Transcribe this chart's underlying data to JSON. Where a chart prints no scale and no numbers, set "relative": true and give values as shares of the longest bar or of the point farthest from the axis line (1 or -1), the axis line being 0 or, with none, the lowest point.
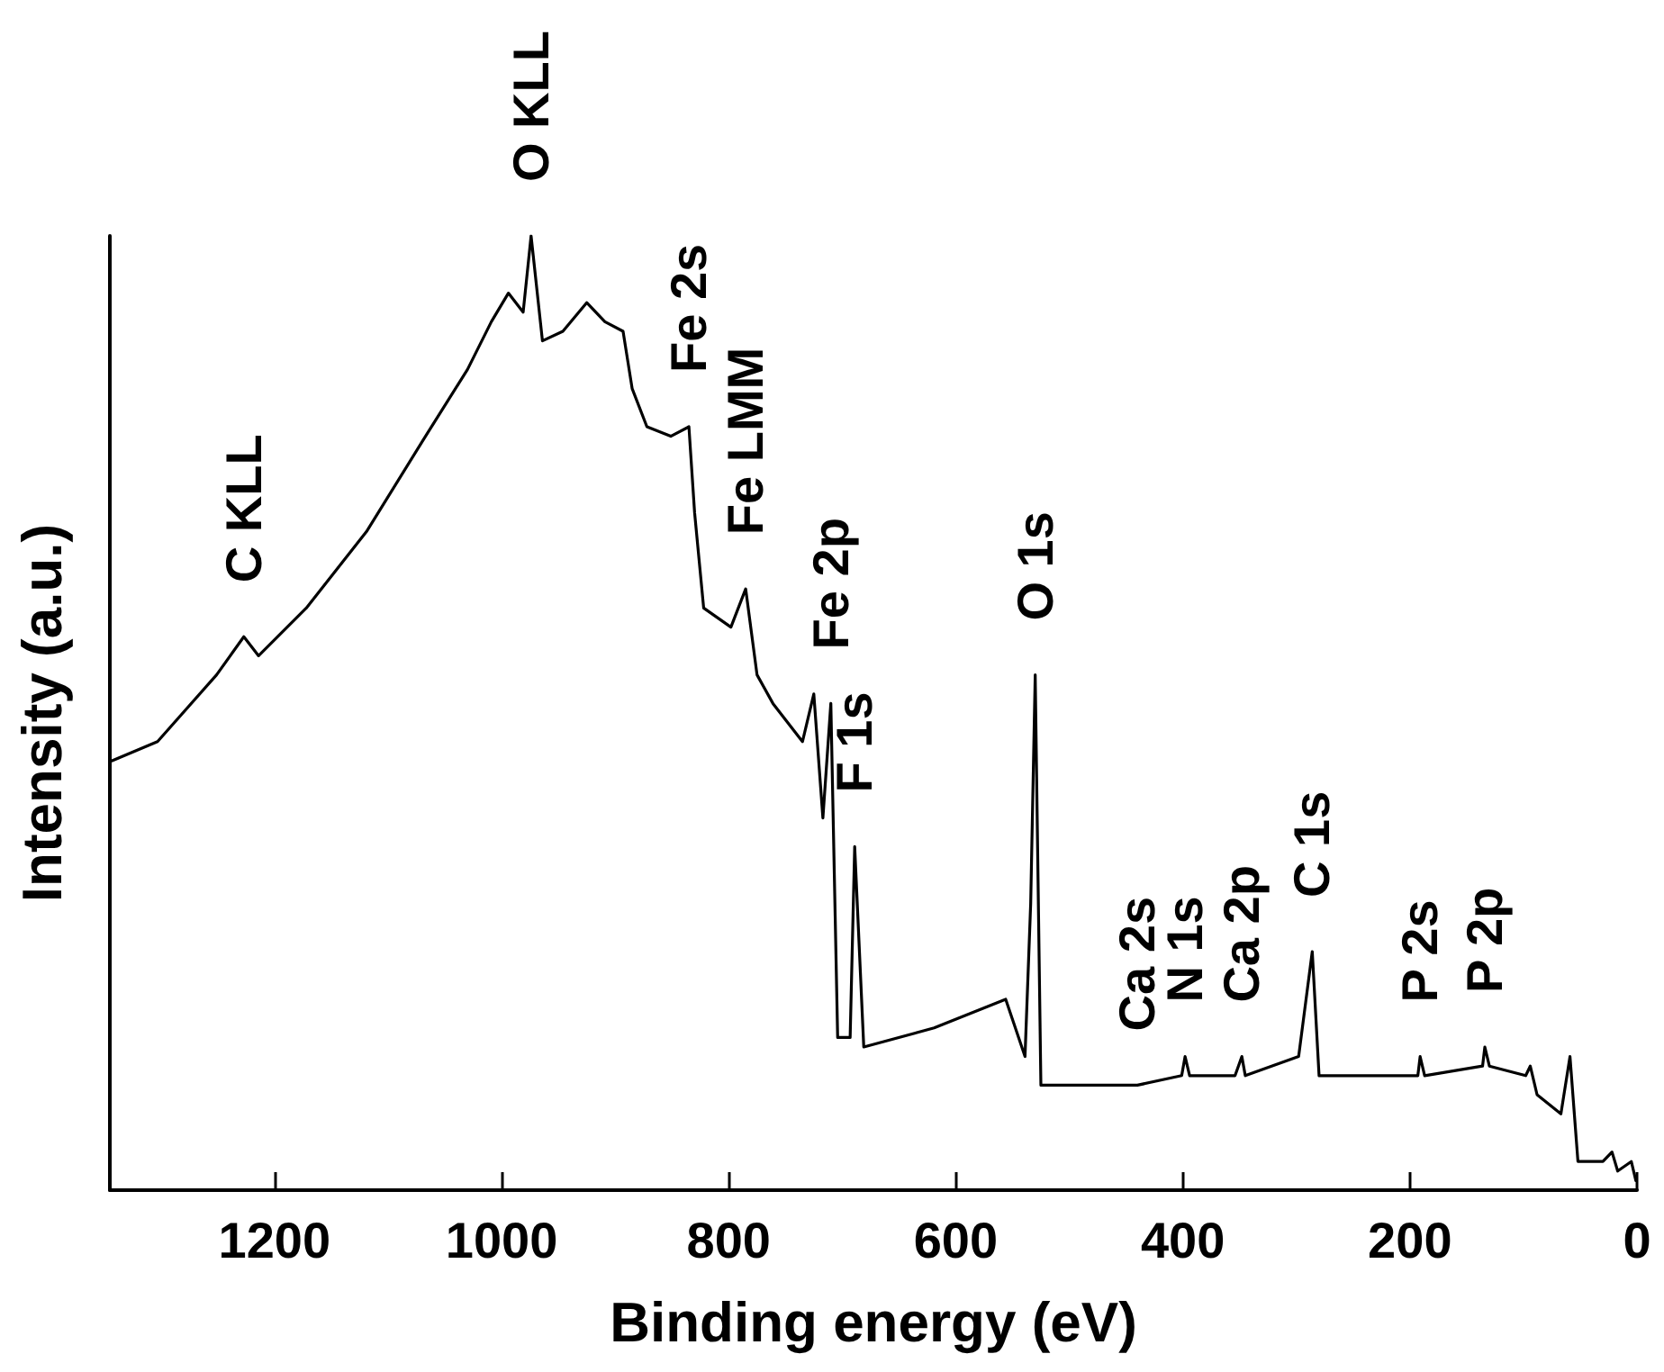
{
  "chart_data": {
    "type": "line",
    "xlabel": "Binding energy (eV)",
    "ylabel": "Intensity (a.u.)",
    "relative": true,
    "xlim": [
      1345,
      0
    ],
    "xticks": [
      1200,
      1000,
      800,
      600,
      400,
      200,
      0
    ],
    "grid": false,
    "marker": "none",
    "line_style": "solid",
    "x": [
      1343,
      1303,
      1251,
      1227,
      1214,
      1172,
      1119,
      1067,
      1030,
      1009,
      994,
      981,
      974,
      964,
      946,
      925,
      909,
      893,
      885,
      872,
      851,
      835,
      830,
      822,
      798,
      785,
      775,
      761,
      735,
      725,
      717,
      710,
      704,
      693,
      689,
      681,
      619,
      556,
      539,
      534,
      530,
      525,
      440,
      401,
      398,
      394,
      354,
      348,
      345,
      298,
      286,
      280,
      193,
      191,
      187,
      136,
      134,
      130,
      98,
      94,
      88,
      67,
      59,
      52,
      30,
      22,
      17,
      5,
      1
    ],
    "series": [
      {
        "color": "#000000",
        "values": [
          0.45,
          0.47,
          0.54,
          0.58,
          0.56,
          0.61,
          0.69,
          0.79,
          0.86,
          0.91,
          0.94,
          0.92,
          1.0,
          0.89,
          0.9,
          0.93,
          0.91,
          0.9,
          0.84,
          0.8,
          0.79,
          0.8,
          0.71,
          0.61,
          0.59,
          0.63,
          0.54,
          0.51,
          0.47,
          0.52,
          0.39,
          0.51,
          0.16,
          0.16,
          0.36,
          0.15,
          0.17,
          0.2,
          0.14,
          0.3,
          0.54,
          0.11,
          0.11,
          0.12,
          0.14,
          0.12,
          0.12,
          0.14,
          0.12,
          0.14,
          0.25,
          0.12,
          0.12,
          0.14,
          0.12,
          0.13,
          0.15,
          0.13,
          0.12,
          0.13,
          0.1,
          0.08,
          0.14,
          0.03,
          0.03,
          0.04,
          0.02,
          0.03,
          0.01
        ]
      }
    ],
    "annotations": [
      {
        "text": "C KLL",
        "x": 1227,
        "y": 0.58
      },
      {
        "text": "O KLL",
        "x": 974,
        "y": 1.0
      },
      {
        "text": "Fe 2s",
        "x": 835,
        "y": 0.8
      },
      {
        "text": "Fe LMM",
        "x": 785,
        "y": 0.63
      },
      {
        "text": "Fe 2p",
        "x": 710,
        "y": 0.51
      },
      {
        "text": "F 1s",
        "x": 689,
        "y": 0.36
      },
      {
        "text": "O 1s",
        "x": 530,
        "y": 0.54
      },
      {
        "text": "Ca 2s",
        "x": 440,
        "y": 0.11
      },
      {
        "text": "N 1s",
        "x": 398,
        "y": 0.14
      },
      {
        "text": "Ca 2p",
        "x": 348,
        "y": 0.14
      },
      {
        "text": "C 1s",
        "x": 286,
        "y": 0.25
      },
      {
        "text": "P 2s",
        "x": 191,
        "y": 0.14
      },
      {
        "text": "P 2p",
        "x": 134,
        "y": 0.15
      }
    ]
  }
}
